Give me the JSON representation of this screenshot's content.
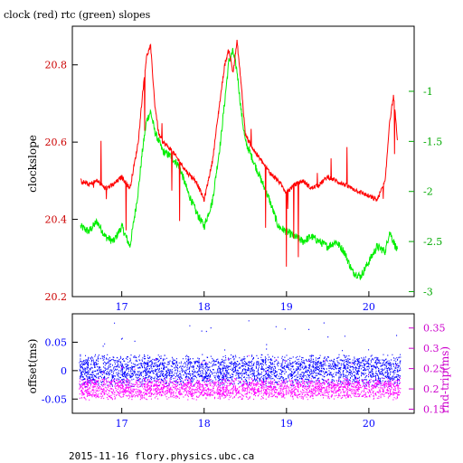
{
  "title": "clock (red) rtc (green) slopes",
  "footer": "2015-11-16 flory.physics.ubc.ca",
  "colors": {
    "clock": "#ff0000",
    "rtc": "#00ee00",
    "offset": "#0000ff",
    "rndtrip": "#ff00ff",
    "axis_top_left": "#cc0000",
    "axis_top_right": "#00aa00",
    "axis_bottom_left": "#0000ff",
    "axis_bottom_right": "#cc00cc"
  },
  "chart_data": [
    {
      "type": "line",
      "ylabel": "clockslope",
      "y2label": "",
      "xlim": [
        16.4,
        20.55
      ],
      "ylim": [
        20.2,
        20.9
      ],
      "y2lim": [
        -3.05,
        -0.35
      ],
      "x_ticks": [
        "17",
        "18",
        "19",
        "20"
      ],
      "y_ticks": [
        "20.2",
        "20.4",
        "20.6",
        "20.8"
      ],
      "y2_ticks": [
        "-3",
        "-2.5",
        "-2",
        "-1.5",
        "-1"
      ],
      "grid": false,
      "series": [
        {
          "name": "clock",
          "axis": "left",
          "x": [
            16.5,
            16.6,
            16.7,
            16.8,
            16.9,
            17.0,
            17.1,
            17.2,
            17.25,
            17.3,
            17.35,
            17.4,
            17.45,
            17.5,
            17.6,
            17.7,
            17.8,
            17.9,
            18.0,
            18.1,
            18.2,
            18.25,
            18.3,
            18.35,
            18.4,
            18.45,
            18.5,
            18.6,
            18.7,
            18.8,
            18.9,
            19.0,
            19.1,
            19.2,
            19.3,
            19.4,
            19.5,
            19.6,
            19.7,
            19.8,
            19.9,
            20.0,
            20.1,
            20.2,
            20.25,
            20.3,
            20.35
          ],
          "y": [
            20.5,
            20.49,
            20.5,
            20.48,
            20.49,
            20.51,
            20.48,
            20.6,
            20.72,
            20.82,
            20.85,
            20.7,
            20.62,
            20.6,
            20.58,
            20.55,
            20.52,
            20.5,
            20.45,
            20.55,
            20.72,
            20.8,
            20.84,
            20.78,
            20.86,
            20.75,
            20.62,
            20.58,
            20.55,
            20.52,
            20.5,
            20.47,
            20.49,
            20.5,
            20.48,
            20.49,
            20.51,
            20.5,
            20.49,
            20.48,
            20.47,
            20.46,
            20.45,
            20.5,
            20.65,
            20.72,
            20.6
          ]
        },
        {
          "name": "rtc",
          "axis": "right",
          "x": [
            16.5,
            16.6,
            16.7,
            16.8,
            16.9,
            17.0,
            17.1,
            17.2,
            17.25,
            17.3,
            17.35,
            17.4,
            17.45,
            17.5,
            17.6,
            17.7,
            17.8,
            17.9,
            18.0,
            18.1,
            18.2,
            18.25,
            18.3,
            18.35,
            18.4,
            18.45,
            18.5,
            18.6,
            18.7,
            18.8,
            18.9,
            19.0,
            19.1,
            19.2,
            19.3,
            19.4,
            19.5,
            19.6,
            19.7,
            19.8,
            19.9,
            20.0,
            20.1,
            20.2,
            20.25,
            20.3,
            20.35
          ],
          "y": [
            -2.35,
            -2.4,
            -2.3,
            -2.45,
            -2.5,
            -2.35,
            -2.55,
            -2.0,
            -1.6,
            -1.3,
            -1.2,
            -1.4,
            -1.5,
            -1.6,
            -1.65,
            -1.75,
            -2.0,
            -2.2,
            -2.35,
            -2.1,
            -1.5,
            -1.1,
            -0.7,
            -0.6,
            -0.8,
            -1.2,
            -1.5,
            -1.7,
            -1.9,
            -2.1,
            -2.35,
            -2.4,
            -2.45,
            -2.5,
            -2.45,
            -2.5,
            -2.55,
            -2.5,
            -2.6,
            -2.8,
            -2.85,
            -2.7,
            -2.55,
            -2.6,
            -2.4,
            -2.5,
            -2.6
          ]
        }
      ]
    },
    {
      "type": "scatter",
      "ylabel": "offset(ms)",
      "y2label": "rnd-trip(ms)",
      "xlim": [
        16.4,
        20.55
      ],
      "ylim": [
        -0.075,
        0.1
      ],
      "y2lim": [
        0.14,
        0.385
      ],
      "x_ticks": [
        "17",
        "18",
        "19",
        "20"
      ],
      "y_ticks": [
        "-0.05",
        "0",
        "0.05"
      ],
      "y2_ticks": [
        "0.15",
        "0.2",
        "0.25",
        "0.3",
        "0.35"
      ],
      "grid": false,
      "series": [
        {
          "name": "offset",
          "axis": "left",
          "x_range": [
            16.48,
            20.38
          ],
          "y_center": 0.0,
          "y_spread": 0.03
        },
        {
          "name": "rnd-trip",
          "axis": "right",
          "x_range": [
            16.48,
            20.38
          ],
          "y_center": 0.2,
          "y_spread": 0.028
        }
      ]
    }
  ]
}
